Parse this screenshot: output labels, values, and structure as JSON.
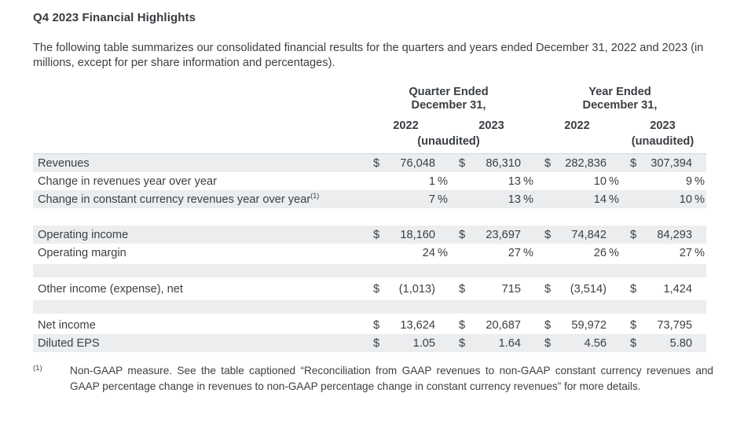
{
  "page": {
    "title": "Q4 2023 Financial Highlights",
    "intro": "The following table summarizes our consolidated financial results for the quarters and years ended December 31, 2022 and 2023 (in millions, except for per share information and percentages)."
  },
  "table": {
    "groups": [
      {
        "line1": "Quarter Ended",
        "line2": "December 31,"
      },
      {
        "line1": "Year Ended",
        "line2": "December 31,"
      }
    ],
    "year_headers": [
      "2022",
      "2023",
      "2022",
      "2023"
    ],
    "unaudited_quarter": "(unaudited)",
    "unaudited_year": "(unaudited)",
    "rows": [
      {
        "label": "Revenues",
        "cells": [
          {
            "pre": "$",
            "val": "76,048",
            "suf": ""
          },
          {
            "pre": "$",
            "val": "86,310",
            "suf": ""
          },
          {
            "pre": "$",
            "val": "282,836",
            "suf": ""
          },
          {
            "pre": "$",
            "val": "307,394",
            "suf": ""
          }
        ]
      },
      {
        "label": "Change in revenues year over year",
        "cells": [
          {
            "pre": "",
            "val": "1",
            "suf": "%"
          },
          {
            "pre": "",
            "val": "13",
            "suf": "%"
          },
          {
            "pre": "",
            "val": "10",
            "suf": "%"
          },
          {
            "pre": "",
            "val": "9",
            "suf": "%"
          }
        ]
      },
      {
        "label": "Change in constant currency revenues year over year",
        "sup": "(1)",
        "cells": [
          {
            "pre": "",
            "val": "7",
            "suf": "%"
          },
          {
            "pre": "",
            "val": "13",
            "suf": "%"
          },
          {
            "pre": "",
            "val": "14",
            "suf": "%"
          },
          {
            "pre": "",
            "val": "10",
            "suf": "%"
          }
        ]
      },
      {
        "label": "Operating income",
        "cells": [
          {
            "pre": "$",
            "val": "18,160",
            "suf": ""
          },
          {
            "pre": "$",
            "val": "23,697",
            "suf": ""
          },
          {
            "pre": "$",
            "val": "74,842",
            "suf": ""
          },
          {
            "pre": "$",
            "val": "84,293",
            "suf": ""
          }
        ]
      },
      {
        "label": "Operating margin",
        "cells": [
          {
            "pre": "",
            "val": "24",
            "suf": "%"
          },
          {
            "pre": "",
            "val": "27",
            "suf": "%"
          },
          {
            "pre": "",
            "val": "26",
            "suf": "%"
          },
          {
            "pre": "",
            "val": "27",
            "suf": "%"
          }
        ]
      },
      {
        "label": "Other income (expense), net",
        "cells": [
          {
            "pre": "$",
            "val": "(1,013)",
            "suf": ""
          },
          {
            "pre": "$",
            "val": "715",
            "suf": ""
          },
          {
            "pre": "$",
            "val": "(3,514)",
            "suf": ""
          },
          {
            "pre": "$",
            "val": "1,424",
            "suf": ""
          }
        ]
      },
      {
        "label": "Net income",
        "cells": [
          {
            "pre": "$",
            "val": "13,624",
            "suf": ""
          },
          {
            "pre": "$",
            "val": "20,687",
            "suf": ""
          },
          {
            "pre": "$",
            "val": "59,972",
            "suf": ""
          },
          {
            "pre": "$",
            "val": "73,795",
            "suf": ""
          }
        ]
      },
      {
        "label": "Diluted EPS",
        "cells": [
          {
            "pre": "$",
            "val": "1.05",
            "suf": ""
          },
          {
            "pre": "$",
            "val": "1.64",
            "suf": ""
          },
          {
            "pre": "$",
            "val": "4.56",
            "suf": ""
          },
          {
            "pre": "$",
            "val": "5.80",
            "suf": ""
          }
        ]
      }
    ]
  },
  "footnote": {
    "marker": "(1)",
    "text": "Non-GAAP measure. See the table captioned “Reconciliation from GAAP revenues to non-GAAP constant currency revenues and GAAP percentage change in revenues to non-GAAP percentage change in constant currency revenues” for more details."
  }
}
